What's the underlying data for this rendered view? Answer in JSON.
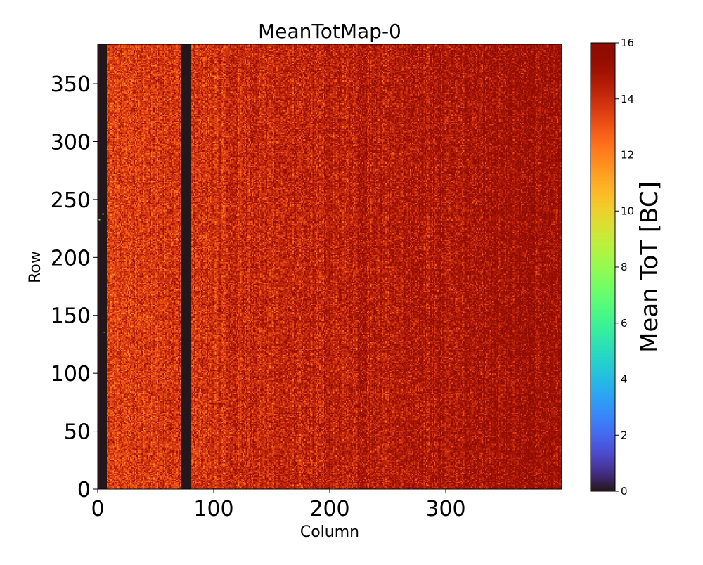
{
  "chart_data": {
    "type": "heatmap",
    "title": "MeanTotMap-0",
    "xlabel": "Column",
    "ylabel": "Row",
    "colorbar_label": "Mean ToT [BC]",
    "xlim": [
      0,
      400
    ],
    "ylim": [
      0,
      384
    ],
    "x_ticks": [
      0,
      100,
      200,
      300
    ],
    "y_ticks": [
      0,
      50,
      100,
      150,
      200,
      250,
      300,
      350
    ],
    "x_tick_labels": [
      "0",
      "100",
      "200",
      "300"
    ],
    "y_tick_labels": [
      "0",
      "50",
      "100",
      "150",
      "200",
      "250",
      "300",
      "350"
    ],
    "color_range": [
      0,
      16
    ],
    "colorbar_ticks": [
      0,
      2,
      4,
      6,
      8,
      10,
      12,
      14,
      16
    ],
    "colorbar_tick_labels": [
      "0",
      "2",
      "4",
      "6",
      "8",
      "10",
      "12",
      "14",
      "16"
    ],
    "colormap": "turbo",
    "dead_column_bands": [
      {
        "from_column": 0,
        "to_column": 8,
        "value": 0
      },
      {
        "from_column": 72,
        "to_column": 80,
        "value": 0
      }
    ],
    "typical_value_range": [
      12,
      16
    ],
    "mean_value_left": 13.5,
    "mean_value_right": 15.3,
    "outlier_pixels": [
      {
        "column": 1,
        "row": 232,
        "value": 7
      },
      {
        "column": 5,
        "row": 135,
        "value": 7
      },
      {
        "column": 4,
        "row": 237,
        "value": 9
      },
      {
        "column": 227,
        "row": 67,
        "value": 8
      }
    ]
  }
}
